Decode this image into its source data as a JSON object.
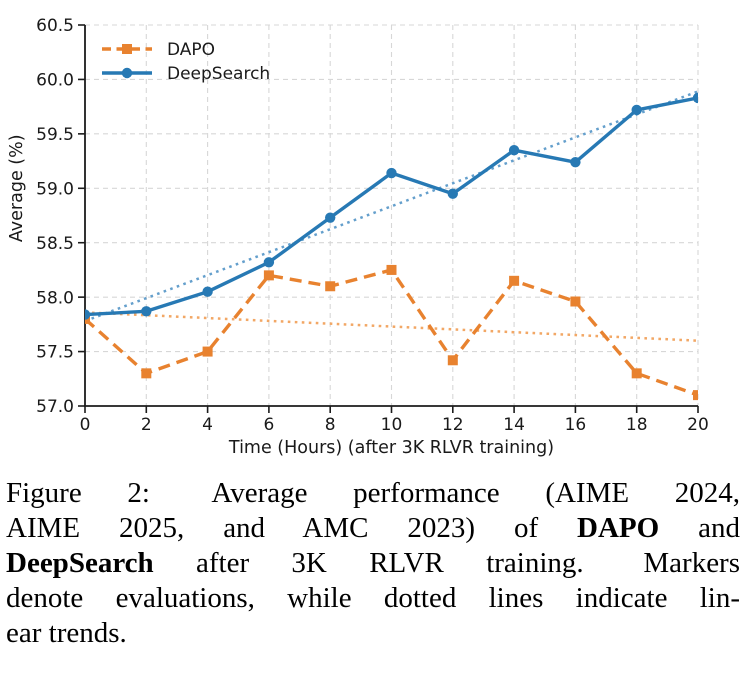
{
  "chart_data": {
    "type": "line",
    "x": [
      0,
      2,
      4,
      6,
      8,
      10,
      12,
      14,
      16,
      18,
      20
    ],
    "series": [
      {
        "name": "DAPO",
        "color": "#e8822f",
        "style": "dashed",
        "marker": "square",
        "values": [
          57.8,
          57.3,
          57.5,
          58.2,
          58.1,
          58.25,
          57.42,
          58.15,
          57.96,
          57.3,
          57.1
        ],
        "trend": {
          "x": [
            0,
            20
          ],
          "y": [
            57.86,
            57.6
          ],
          "color": "#f2a765"
        }
      },
      {
        "name": "DeepSearch",
        "color": "#2779b4",
        "style": "solid",
        "marker": "circle",
        "values": [
          57.84,
          57.87,
          58.05,
          58.32,
          58.73,
          59.14,
          58.95,
          59.35,
          59.24,
          59.72,
          59.83
        ],
        "trend": {
          "x": [
            0,
            20
          ],
          "y": [
            57.78,
            59.89
          ],
          "color": "#649fcc"
        }
      }
    ],
    "title": "",
    "xlabel": "Time (Hours) (after 3K RLVR training)",
    "ylabel": "Average (%)",
    "xlim": [
      0,
      20
    ],
    "ylim": [
      57.0,
      60.5
    ],
    "xticks": [
      "0",
      "2",
      "4",
      "6",
      "8",
      "10",
      "12",
      "14",
      "16",
      "18",
      "20"
    ],
    "yticks": [
      "57.0",
      "57.5",
      "58.0",
      "58.5",
      "59.0",
      "59.5",
      "60.0",
      "60.5"
    ],
    "grid": true,
    "grid_color": "#d7d7d7",
    "axis_color": "#1c1c1c",
    "legend_position": "upper-left",
    "legend_text_color": "#2a2a2a",
    "annotation": "dotted lines are linear trends"
  },
  "caption": {
    "figure_label": "Figure 2:",
    "full_text": "Figure 2: Average performance (AIME 2024, AIME 2025, and AMC 2023) of DAPO and DeepSearch after 3K RLVR training. Markers denote evaluations, while dotted lines indicate linear trends.",
    "lines": [
      {
        "justify": true,
        "segments": [
          {
            "t": "Figure 2:",
            "pad": true
          },
          {
            "t": "Average performance (AIME 2024,"
          }
        ]
      },
      {
        "justify": true,
        "segments": [
          {
            "t": "AIME 2025, and AMC 2023) of"
          },
          {
            "t": "DAPO",
            "b": true
          },
          {
            "t": "and"
          }
        ]
      },
      {
        "justify": true,
        "segments": [
          {
            "t": "DeepSearch",
            "b": true
          },
          {
            "t": "after 3K RLVR training.",
            "pad": true
          },
          {
            "t": "Markers"
          }
        ]
      },
      {
        "justify": true,
        "segments": [
          {
            "t": "denote evaluations, while dotted lines indicate lin-"
          }
        ]
      },
      {
        "justify": false,
        "segments": [
          {
            "t": "ear trends."
          }
        ]
      }
    ]
  }
}
